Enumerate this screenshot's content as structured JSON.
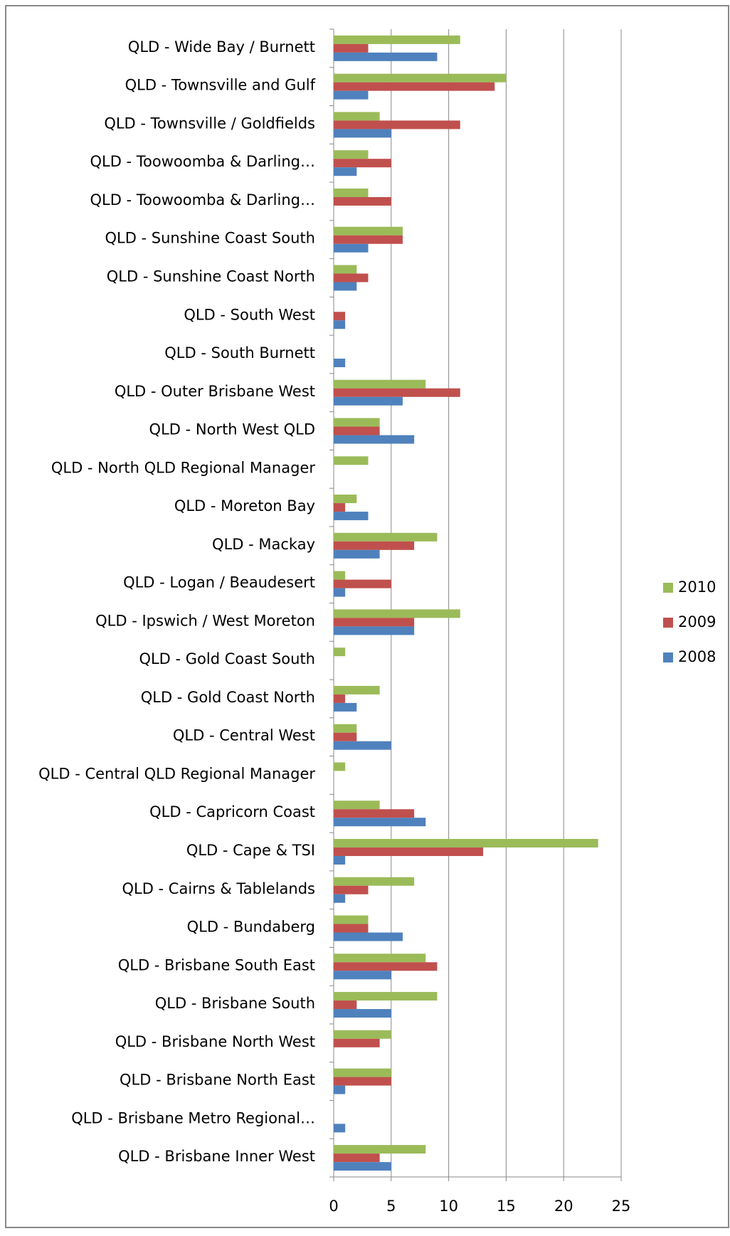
{
  "chart_data": {
    "type": "bar",
    "orientation": "horizontal",
    "categories": [
      "QLD - Wide Bay / Burnett",
      "QLD - Townsville and Gulf",
      "QLD - Townsville / Goldfields",
      "QLD - Toowoomba & Darling…",
      "QLD - Toowoomba & Darling…",
      "QLD - Sunshine Coast South",
      "QLD - Sunshine Coast North",
      "QLD - South West",
      "QLD - South Burnett",
      "QLD - Outer Brisbane West",
      "QLD - North West QLD",
      "QLD - North QLD Regional Manager",
      "QLD - Moreton Bay",
      "QLD - Mackay",
      "QLD - Logan / Beaudesert",
      "QLD - Ipswich / West Moreton",
      "QLD - Gold Coast South",
      "QLD - Gold Coast North",
      "QLD - Central West",
      "QLD - Central QLD Regional Manager",
      "QLD - Capricorn Coast",
      "QLD - Cape & TSI",
      "QLD - Cairns & Tablelands",
      "QLD - Bundaberg",
      "QLD - Brisbane South East",
      "QLD - Brisbane South",
      "QLD - Brisbane North West",
      "QLD - Brisbane North East",
      "QLD - Brisbane Metro Regional…",
      "QLD - Brisbane Inner West"
    ],
    "series": [
      {
        "name": "2010",
        "color": "#9bbb59",
        "values": [
          11,
          15,
          4,
          3,
          3,
          6,
          2,
          0,
          0,
          8,
          4,
          3,
          2,
          9,
          1,
          11,
          1,
          4,
          2,
          1,
          4,
          23,
          7,
          3,
          8,
          9,
          5,
          5,
          0,
          8
        ]
      },
      {
        "name": "2009",
        "color": "#c0504d",
        "values": [
          3,
          14,
          11,
          5,
          5,
          6,
          3,
          1,
          0,
          11,
          4,
          0,
          1,
          7,
          5,
          7,
          0,
          1,
          2,
          0,
          7,
          13,
          3,
          3,
          9,
          2,
          4,
          5,
          0,
          4
        ]
      },
      {
        "name": "2008",
        "color": "#4f81bd",
        "values": [
          9,
          3,
          5,
          2,
          0,
          3,
          2,
          1,
          1,
          6,
          7,
          0,
          3,
          4,
          1,
          7,
          0,
          2,
          5,
          0,
          8,
          1,
          1,
          6,
          5,
          5,
          0,
          1,
          1,
          5
        ]
      }
    ],
    "xlim": [
      0,
      25
    ],
    "xticks": [
      0,
      5,
      10,
      15,
      20,
      25
    ],
    "grid": true,
    "legend": "right"
  }
}
